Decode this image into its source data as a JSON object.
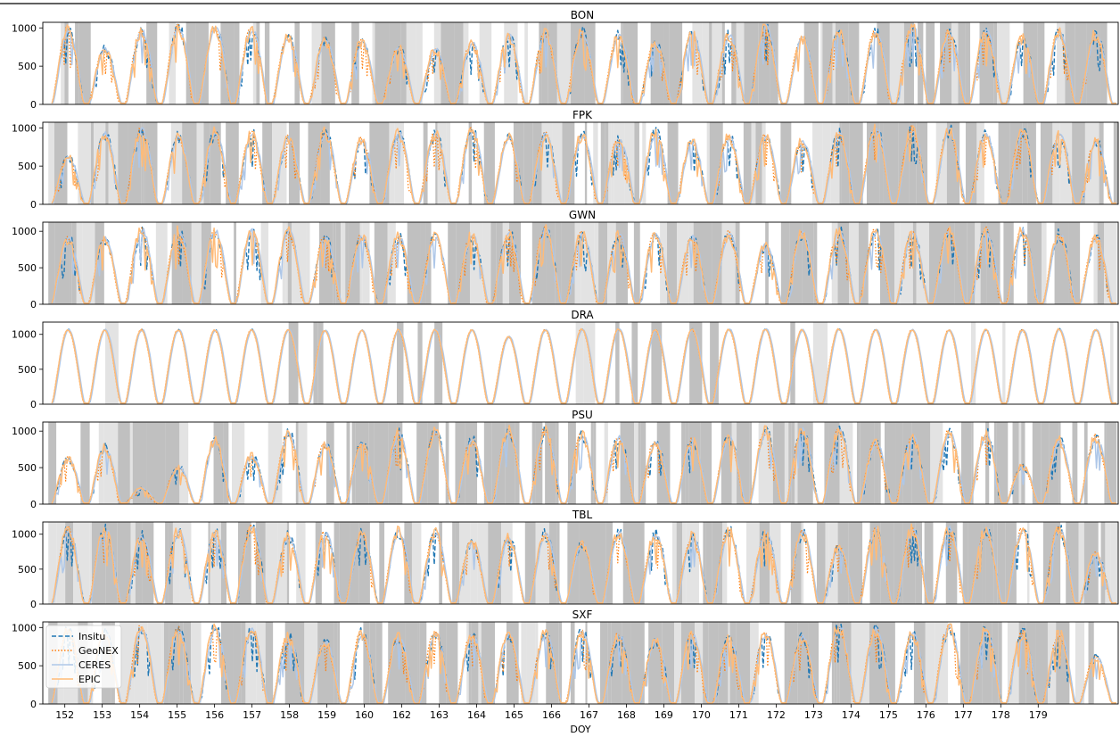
{
  "figure": {
    "xlabel": "DOY"
  },
  "legend": {
    "position": "upper-left of bottom panel",
    "entries": [
      {
        "label": "Insitu",
        "color": "#1f77b4",
        "style": "dashed"
      },
      {
        "label": "GeoNEX",
        "color": "#ff7f0e",
        "style": "dotted"
      },
      {
        "label": "CERES",
        "color": "#aec7e8",
        "style": "solid"
      },
      {
        "label": "EPIC",
        "color": "#ffbb78",
        "style": "solid"
      }
    ]
  },
  "chart_data": [
    {
      "type": "line",
      "title": "BON",
      "xlabel": "",
      "ylabel": "",
      "ylim": [
        0,
        1050
      ],
      "yticks": [
        0,
        500,
        1000
      ],
      "xlim": [
        151.3,
        180.6
      ],
      "daily_peak": [
        960,
        700,
        940,
        980,
        980,
        960,
        860,
        820,
        800,
        720,
        700,
        780,
        880,
        900,
        920,
        880,
        780,
        900,
        880,
        1000,
        850,
        920,
        920,
        1000,
        920,
        940,
        840,
        920,
        900
      ],
      "cloud_shading": "dark and light gray bands mark cloudy periods"
    },
    {
      "type": "line",
      "title": "FPK",
      "xlabel": "",
      "ylabel": "",
      "ylim": [
        0,
        1050
      ],
      "yticks": [
        0,
        500,
        1000
      ],
      "xlim": [
        151.3,
        180.6
      ],
      "daily_peak": [
        600,
        900,
        950,
        860,
        920,
        900,
        850,
        920,
        820,
        900,
        900,
        950,
        850,
        900,
        880,
        850,
        920,
        800,
        860,
        880,
        800,
        900,
        980,
        960,
        950,
        900,
        920,
        900,
        800
      ],
      "cloud_shading": "dark and light gray bands mark cloudy periods"
    },
    {
      "type": "line",
      "title": "GWN",
      "xlabel": "",
      "ylabel": "",
      "ylim": [
        0,
        1100
      ],
      "yticks": [
        0,
        500,
        1000
      ],
      "xlim": [
        151.3,
        180.6
      ],
      "daily_peak": [
        880,
        880,
        1000,
        980,
        980,
        1000,
        980,
        900,
        920,
        900,
        900,
        920,
        960,
        1000,
        950,
        920,
        940,
        900,
        940,
        800,
        960,
        980,
        980,
        960,
        980,
        990,
        990,
        940,
        900
      ],
      "cloud_shading": "dark and light gray bands mark cloudy periods"
    },
    {
      "type": "line",
      "title": "DRA",
      "xlabel": "",
      "ylabel": "",
      "ylim": [
        0,
        1150
      ],
      "yticks": [
        0,
        500,
        1000
      ],
      "xlim": [
        151.3,
        180.6
      ],
      "daily_peak": [
        1050,
        1050,
        1050,
        1050,
        1050,
        1050,
        1050,
        1040,
        1040,
        1050,
        1050,
        1050,
        950,
        1050,
        1060,
        1060,
        1050,
        1060,
        1060,
        1060,
        1050,
        1060,
        1050,
        1050,
        1050,
        1050,
        1050,
        1060,
        1050
      ],
      "cloud_shading": "dark and light gray bands mark cloudy periods"
    },
    {
      "type": "line",
      "title": "PSU",
      "xlabel": "",
      "ylabel": "",
      "ylim": [
        0,
        1100
      ],
      "yticks": [
        0,
        500,
        1000
      ],
      "xlim": [
        151.3,
        180.6
      ],
      "daily_peak": [
        600,
        750,
        200,
        500,
        850,
        650,
        950,
        800,
        800,
        950,
        980,
        850,
        980,
        990,
        920,
        900,
        820,
        850,
        900,
        980,
        1000,
        980,
        820,
        900,
        960,
        950,
        500,
        850,
        900
      ],
      "cloud_shading": "dark and light gray bands mark cloudy periods"
    },
    {
      "type": "line",
      "title": "TBL",
      "xlabel": "",
      "ylabel": "",
      "ylim": [
        0,
        1150
      ],
      "yticks": [
        0,
        500,
        1000
      ],
      "xlim": [
        151.3,
        180.6
      ],
      "daily_peak": [
        1050,
        1060,
        950,
        1020,
        1000,
        1080,
        950,
        1000,
        1000,
        1020,
        1000,
        880,
        920,
        980,
        850,
        1000,
        980,
        950,
        1020,
        1000,
        1000,
        800,
        1050,
        1050,
        1060,
        1050,
        1050,
        1050,
        700
      ],
      "cloud_shading": "dark and light gray bands mark cloudy periods"
    },
    {
      "type": "line",
      "title": "SXF",
      "xlabel": "DOY",
      "ylabel": "",
      "ylim": [
        0,
        1050
      ],
      "yticks": [
        0,
        500,
        1000
      ],
      "xlim": [
        151.3,
        180.6
      ],
      "xticks": [
        152,
        153,
        154,
        155,
        156,
        157,
        158,
        159,
        160,
        162,
        163,
        164,
        165,
        166,
        167,
        168,
        169,
        170,
        171,
        172,
        173,
        174,
        175,
        176,
        177,
        178,
        179
      ],
      "daily_peak": [
        950,
        900,
        980,
        950,
        980,
        950,
        850,
        800,
        900,
        850,
        900,
        880,
        900,
        900,
        920,
        880,
        820,
        880,
        820,
        900,
        850,
        1000,
        950,
        900,
        1000,
        950,
        900,
        900,
        600
      ],
      "cloud_shading": "dark and light gray bands mark cloudy periods"
    }
  ]
}
